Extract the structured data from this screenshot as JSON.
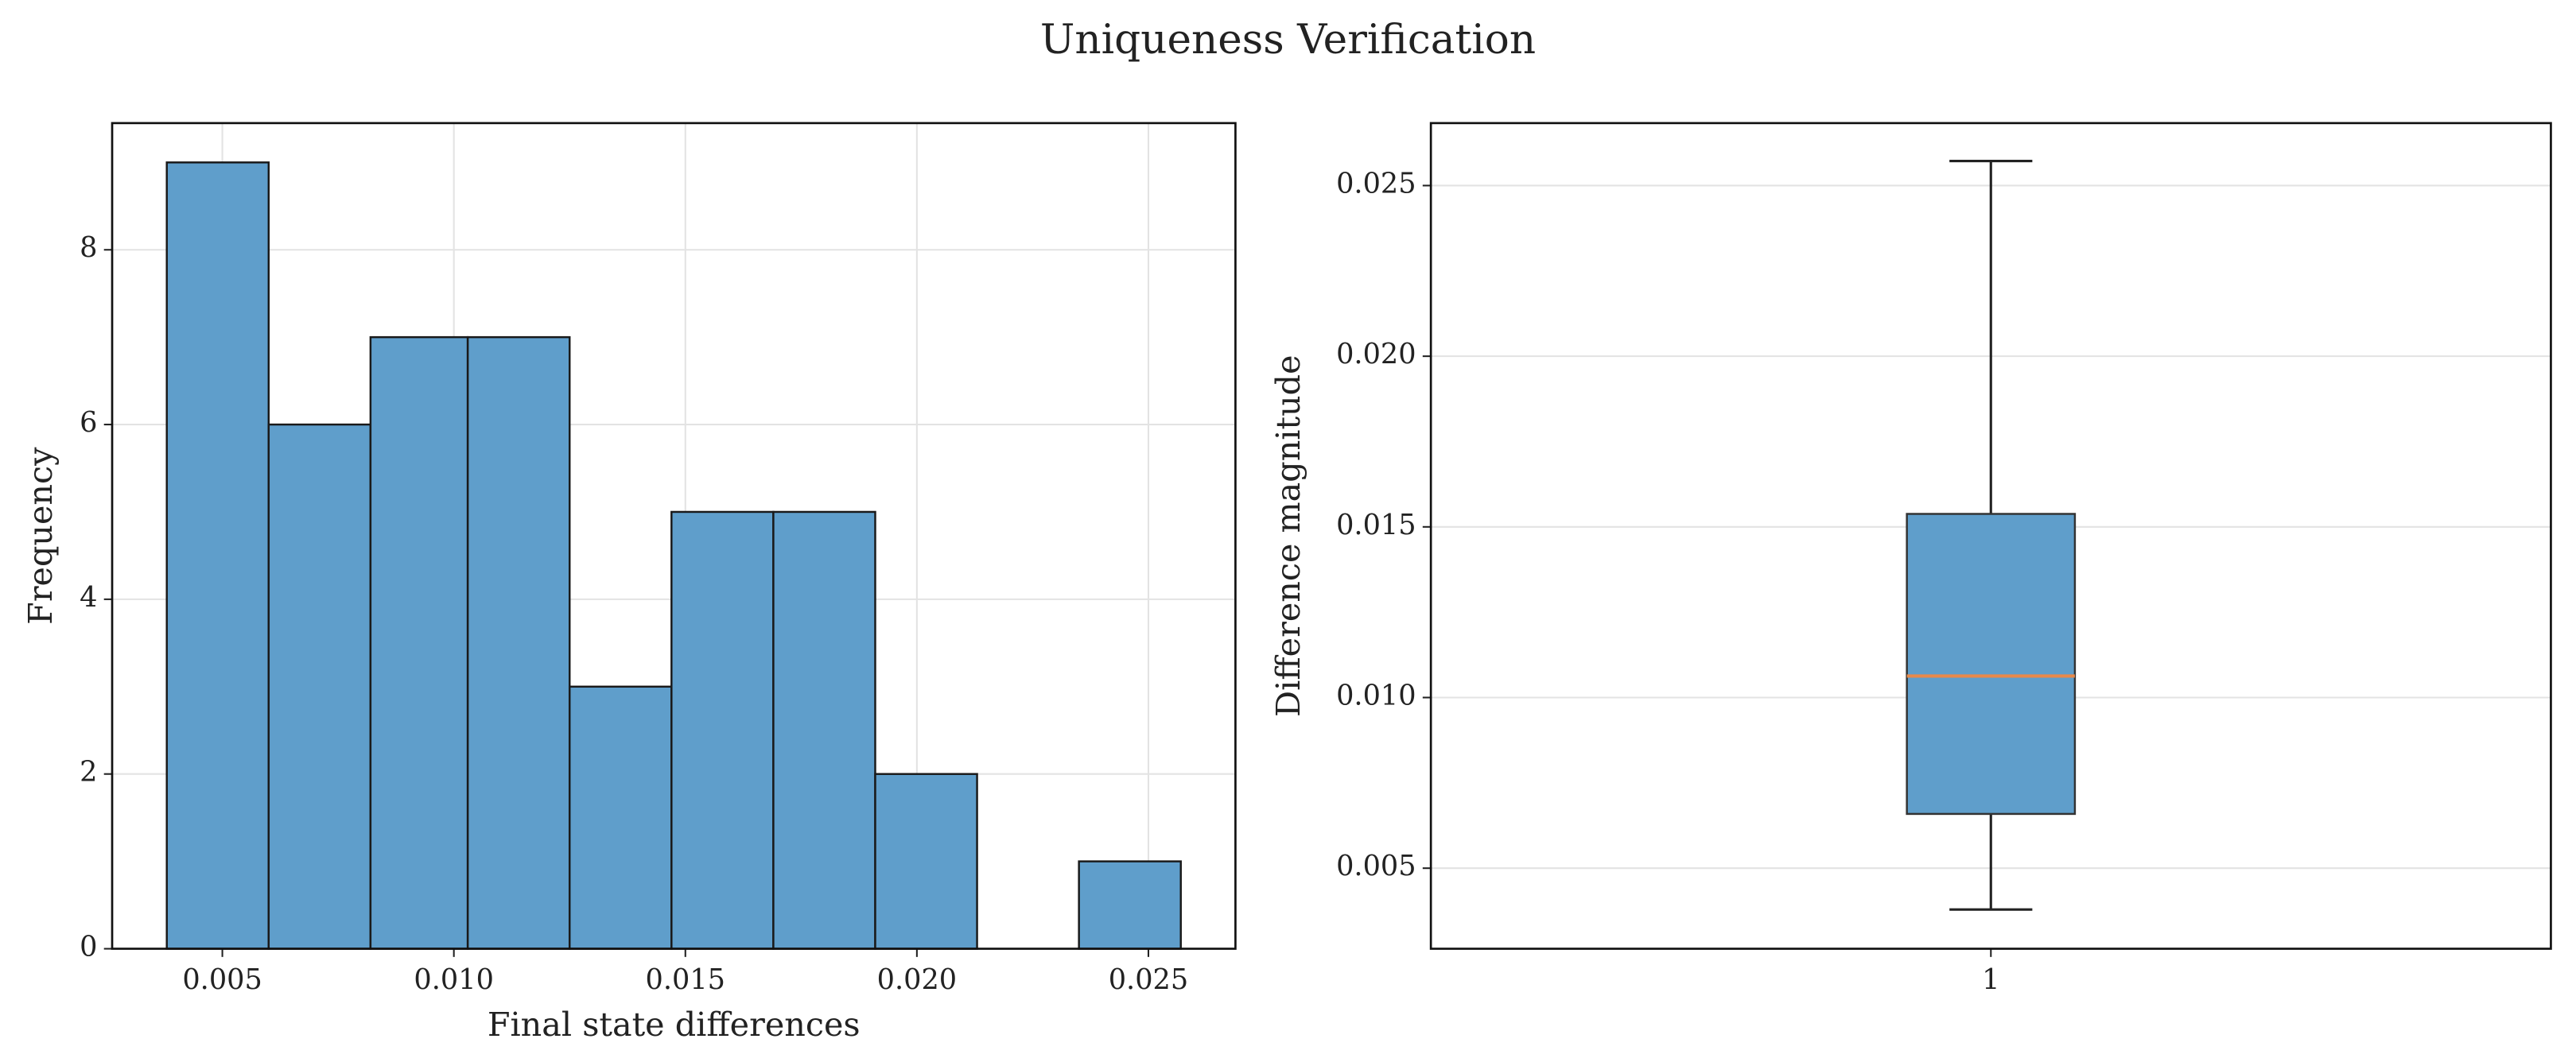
{
  "title": "Uniqueness Verification",
  "chart_data": [
    {
      "type": "histogram",
      "xlabel": "Final state differences",
      "ylabel": "Frequency",
      "bins": [
        0.0038,
        0.006,
        0.0082,
        0.0103,
        0.0125,
        0.0147,
        0.0169,
        0.0191,
        0.0213,
        0.0235,
        0.0257
      ],
      "values": [
        9,
        6,
        7,
        7,
        3,
        5,
        5,
        2,
        0,
        1
      ],
      "color": "#5f9ecb",
      "xlim": [
        0.00262,
        0.02688
      ],
      "xticks": [
        0.005,
        {
          "value": 0.01,
          "label": "0.010"
        },
        0.015,
        {
          "value": 0.02,
          "label": "0.020"
        },
        0.025
      ],
      "ylim": [
        0,
        9.45
      ],
      "yticks": [
        0,
        2,
        4,
        6,
        8
      ],
      "grid": true
    },
    {
      "type": "box",
      "ylabel": "Difference magnitude",
      "categories": [
        "1"
      ],
      "whislo": [
        0.00379
      ],
      "q1": [
        0.00659
      ],
      "median": [
        0.01063
      ],
      "q3": [
        0.01538
      ],
      "whishi": [
        0.02572
      ],
      "color": "#5f9ecb",
      "median_color": "#e8894a",
      "ylim": [
        0.00264,
        0.02683
      ],
      "yticks": [
        0.005,
        {
          "value": 0.01,
          "label": "0.010"
        },
        0.015,
        {
          "value": 0.02,
          "label": "0.020"
        },
        0.025
      ],
      "grid": true
    }
  ]
}
